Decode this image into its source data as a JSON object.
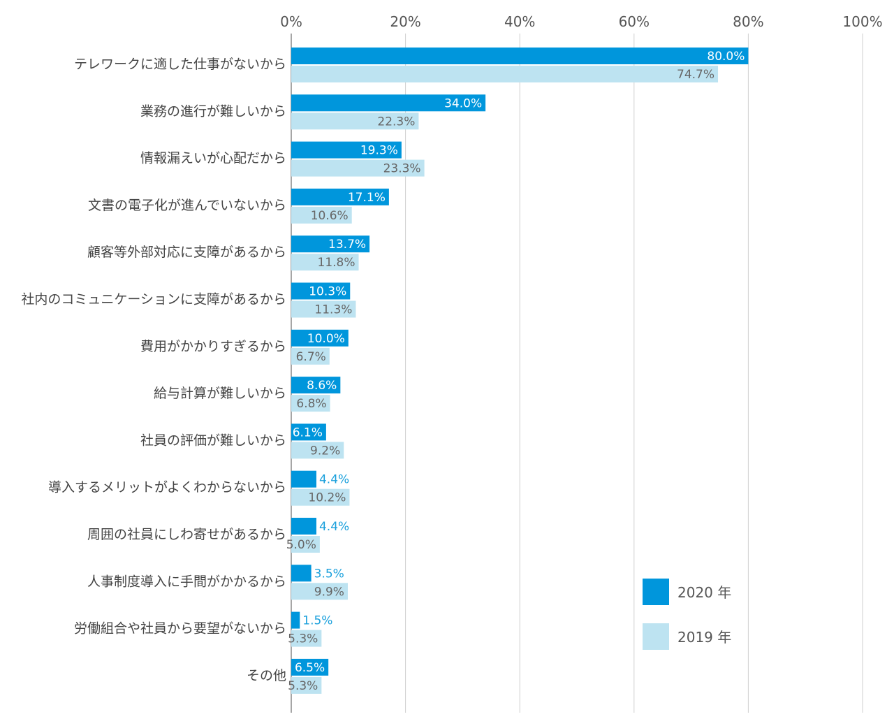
{
  "chart_data": {
    "type": "bar",
    "orientation": "horizontal",
    "xlim": [
      0,
      100
    ],
    "x_ticks": [
      "0%",
      "20%",
      "40%",
      "60%",
      "80%",
      "100%"
    ],
    "grid": true,
    "legend_position": "bottom-right",
    "categories": [
      "テレワークに適した仕事がないから",
      "業務の進行が難しいから",
      "情報漏えいが心配だから",
      "文書の電子化が進んでいないから",
      "顧客等外部対応に支障があるから",
      "社内のコミュニケーションに支障があるから",
      "費用がかかりすぎるから",
      "給与計算が難しいから",
      "社員の評価が難しいから",
      "導入するメリットがよくわからないから",
      "周囲の社員にしわ寄せがあるから",
      "人事制度導入に手間がかかるから",
      "労働組合や社員から要望がないから",
      "その他"
    ],
    "series": [
      {
        "name": "2020 年",
        "color": "#0096dc",
        "values": [
          80.0,
          34.0,
          19.3,
          17.1,
          13.7,
          10.3,
          10.0,
          8.6,
          6.1,
          4.4,
          4.4,
          3.5,
          1.5,
          6.5
        ],
        "labels": [
          "80.0%",
          "34.0%",
          "19.3%",
          "17.1%",
          "13.7%",
          "10.3%",
          "10.0%",
          "8.6%",
          "6.1%",
          "4.4%",
          "4.4%",
          "3.5%",
          "1.5%",
          "6.5%"
        ]
      },
      {
        "name": "2019 年",
        "color": "#bde3f1",
        "values": [
          74.7,
          22.3,
          23.3,
          10.6,
          11.8,
          11.3,
          6.7,
          6.8,
          9.2,
          10.2,
          5.0,
          9.9,
          5.3,
          5.3
        ],
        "labels": [
          "74.7%",
          "22.3%",
          "23.3%",
          "10.6%",
          "11.8%",
          "11.3%",
          "6.7%",
          "6.8%",
          "9.2%",
          "10.2%",
          "5.0%",
          "9.9%",
          "5.3%",
          "5.3%"
        ]
      }
    ]
  }
}
